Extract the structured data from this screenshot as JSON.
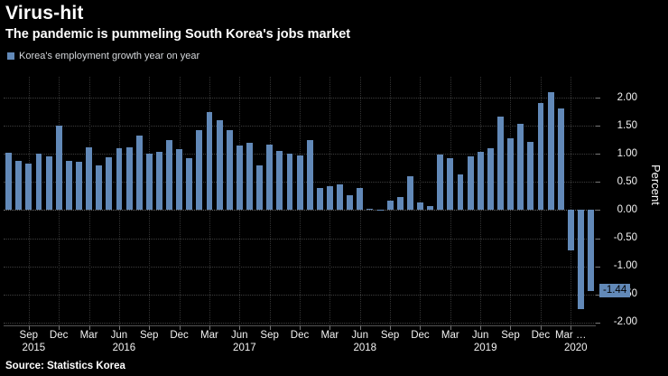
{
  "header": {
    "title": "Virus-hit",
    "subtitle": "The pandemic is pummeling South Korea's jobs market"
  },
  "legend": {
    "label": "Korea's employment growth year on year"
  },
  "source": "Source: Statistics Korea",
  "colors": {
    "background": "#000000",
    "bar": "#6289b8",
    "grid": "#3d3d3d",
    "text": "#ffffff"
  },
  "chart_data": {
    "type": "bar",
    "title": "Korea's employment growth year on year",
    "xlabel": "",
    "ylabel": "Percent",
    "ylim": [
      -2.05,
      2.37
    ],
    "grid": true,
    "legend_position": "top-left",
    "bar_color": "#6289b8",
    "yticks": [
      2.0,
      1.5,
      1.0,
      0.5,
      0.0,
      -0.5,
      -1.0,
      -1.5,
      -2.0
    ],
    "ytick_labels": [
      "2.00",
      "1.50",
      "1.00",
      "0.50",
      "0.00",
      "-0.50",
      "-1.00",
      "-1.50",
      "-2.00"
    ],
    "months": [
      "Jul 2015",
      "Aug 2015",
      "Sep 2015",
      "Oct 2015",
      "Nov 2015",
      "Dec 2015",
      "Jan 2016",
      "Feb 2016",
      "Mar 2016",
      "Apr 2016",
      "May 2016",
      "Jun 2016",
      "Jul 2016",
      "Aug 2016",
      "Sep 2016",
      "Oct 2016",
      "Nov 2016",
      "Dec 2016",
      "Jan 2017",
      "Feb 2017",
      "Mar 2017",
      "Apr 2017",
      "May 2017",
      "Jun 2017",
      "Jul 2017",
      "Aug 2017",
      "Sep 2017",
      "Oct 2017",
      "Nov 2017",
      "Dec 2017",
      "Jan 2018",
      "Feb 2018",
      "Mar 2018",
      "Apr 2018",
      "May 2018",
      "Jun 2018",
      "Jul 2018",
      "Aug 2018",
      "Sep 2018",
      "Oct 2018",
      "Nov 2018",
      "Dec 2018",
      "Jan 2019",
      "Feb 2019",
      "Mar 2019",
      "Apr 2019",
      "May 2019",
      "Jun 2019",
      "Jul 2019",
      "Aug 2019",
      "Sep 2019",
      "Oct 2019",
      "Nov 2019",
      "Dec 2019",
      "Jan 2020",
      "Feb 2020",
      "Mar 2020",
      "Apr 2020",
      "May 2020"
    ],
    "values": [
      1.02,
      0.87,
      0.82,
      1.0,
      0.96,
      1.5,
      0.87,
      0.86,
      1.12,
      0.8,
      0.94,
      1.1,
      1.12,
      1.32,
      1.0,
      1.03,
      1.25,
      1.08,
      0.92,
      1.42,
      1.75,
      1.6,
      1.42,
      1.15,
      1.2,
      0.8,
      1.17,
      1.05,
      1.0,
      0.97,
      1.25,
      0.39,
      0.42,
      0.46,
      0.27,
      0.4,
      0.02,
      0.01,
      0.17,
      0.24,
      0.61,
      0.13,
      0.07,
      0.98,
      0.93,
      0.63,
      0.96,
      1.04,
      1.1,
      1.67,
      1.28,
      1.54,
      1.21,
      1.91,
      2.1,
      1.8,
      -0.72,
      -1.76,
      -1.44
    ],
    "x_ticks": [
      {
        "index": 2,
        "label": "Sep"
      },
      {
        "index": 5,
        "label": "Dec"
      },
      {
        "index": 8,
        "label": "Mar"
      },
      {
        "index": 11,
        "label": "Jun"
      },
      {
        "index": 14,
        "label": "Sep"
      },
      {
        "index": 17,
        "label": "Dec"
      },
      {
        "index": 20,
        "label": "Mar"
      },
      {
        "index": 23,
        "label": "Jun"
      },
      {
        "index": 26,
        "label": "Sep"
      },
      {
        "index": 29,
        "label": "Dec"
      },
      {
        "index": 32,
        "label": "Mar"
      },
      {
        "index": 35,
        "label": "Jun"
      },
      {
        "index": 38,
        "label": "Sep"
      },
      {
        "index": 41,
        "label": "Dec"
      },
      {
        "index": 44,
        "label": "Mar"
      },
      {
        "index": 47,
        "label": "Jun"
      },
      {
        "index": 50,
        "label": "Sep"
      },
      {
        "index": 53,
        "label": "Dec"
      },
      {
        "index": 56,
        "label": "Mar …"
      }
    ],
    "years": [
      {
        "label": "2015",
        "center": 2.5
      },
      {
        "label": "2016",
        "center": 11.5
      },
      {
        "label": "2017",
        "center": 23.5
      },
      {
        "label": "2018",
        "center": 35.5
      },
      {
        "label": "2019",
        "center": 47.5
      },
      {
        "label": "2020",
        "center": 56.5
      }
    ],
    "last_value_label": {
      "text": "-1.44",
      "value": -1.44
    }
  }
}
